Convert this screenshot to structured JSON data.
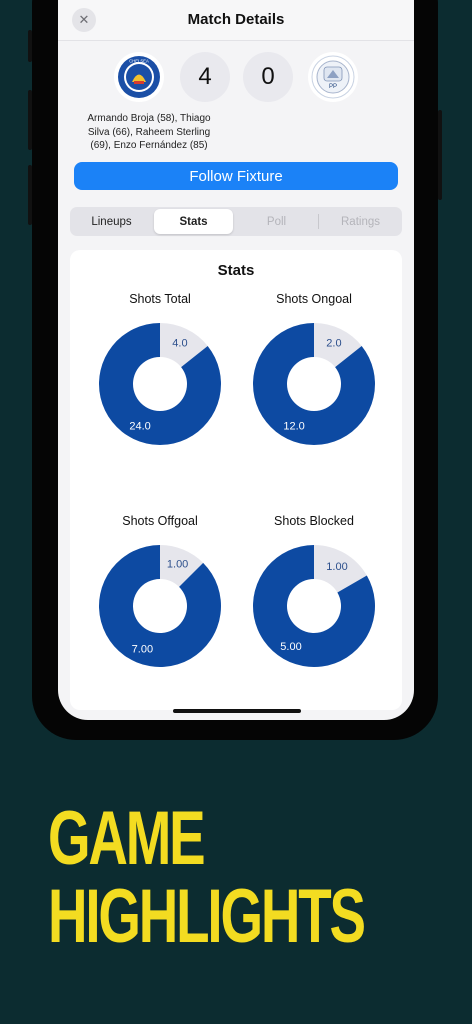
{
  "header": {
    "title": "Match Details",
    "close_icon": "close-icon"
  },
  "match": {
    "home_score": "4",
    "away_score": "0",
    "home_badge_icon": "chelsea-badge-icon",
    "away_badge_icon": "preston-badge-icon",
    "home_badge_text": "CHELSEA",
    "away_badge_text": "PP",
    "scorers_line1": "Armando Broja (58), Thiago",
    "scorers_line2": "Silva (66), Raheem Sterling",
    "scorers_line3": "(69), Enzo Fernández (85)"
  },
  "follow_button": {
    "label": "Follow Fixture"
  },
  "tabs": [
    {
      "label": "Lineups",
      "state": "normal"
    },
    {
      "label": "Stats",
      "state": "active"
    },
    {
      "label": "Poll",
      "state": "disabled"
    },
    {
      "label": "Ratings",
      "state": "disabled"
    }
  ],
  "stats_card": {
    "title": "Stats"
  },
  "colors": {
    "home": "#0d4aa2",
    "away": "#e6e6ec",
    "accent": "#1b82f7",
    "headline": "#f3dc21"
  },
  "chart_data": [
    {
      "type": "pie",
      "title": "Shots Total",
      "categories": [
        "home",
        "away"
      ],
      "values": [
        24.0,
        4.0
      ],
      "labels": [
        "24.0",
        "4.0"
      ]
    },
    {
      "type": "pie",
      "title": "Shots Ongoal",
      "categories": [
        "home",
        "away"
      ],
      "values": [
        12.0,
        2.0
      ],
      "labels": [
        "12.0",
        "2.0"
      ]
    },
    {
      "type": "pie",
      "title": "Shots Offgoal",
      "categories": [
        "home",
        "away"
      ],
      "values": [
        7.0,
        1.0
      ],
      "labels": [
        "7.00",
        "1.00"
      ]
    },
    {
      "type": "pie",
      "title": "Shots Blocked",
      "categories": [
        "home",
        "away"
      ],
      "values": [
        5.0,
        1.0
      ],
      "labels": [
        "5.00",
        "1.00"
      ]
    }
  ],
  "promo": {
    "line1": "GAME",
    "line2": "HIGHLIGHTS"
  }
}
